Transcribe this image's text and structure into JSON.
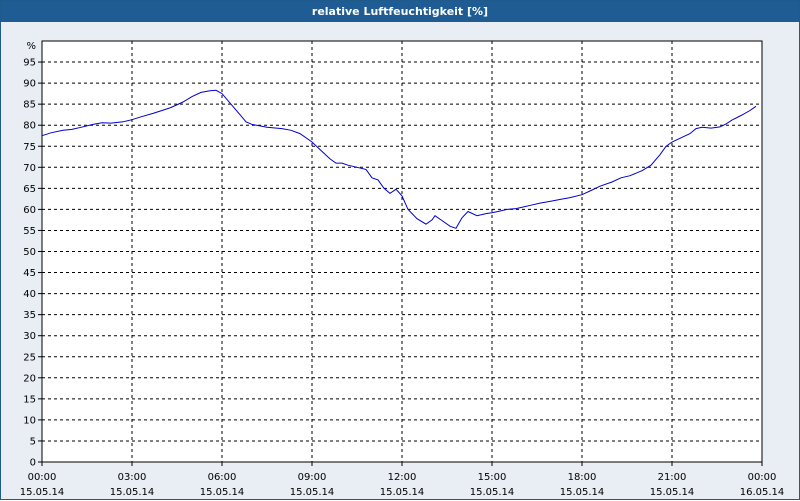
{
  "title": "relative Luftfeuchtigkeit [%]",
  "colors": {
    "titlebar": "#1f5c93",
    "background": "#e9eef4",
    "plot_bg": "#ffffff",
    "line": "#0000cc",
    "grid": "#000000"
  },
  "chart_data": {
    "type": "line",
    "title": "relative Luftfeuchtigkeit [%]",
    "ylabel": "%",
    "xlabel": "",
    "ylim": [
      0,
      100
    ],
    "xlim": [
      0,
      24
    ],
    "grid": true,
    "yticks": [
      "0",
      "5",
      "10",
      "15",
      "20",
      "25",
      "30",
      "35",
      "40",
      "45",
      "50",
      "55",
      "60",
      "65",
      "70",
      "75",
      "80",
      "85",
      "90",
      "95"
    ],
    "xticks": [
      {
        "time": "00:00",
        "date": "15.05.14"
      },
      {
        "time": "03:00",
        "date": "15.05.14"
      },
      {
        "time": "06:00",
        "date": "15.05.14"
      },
      {
        "time": "09:00",
        "date": "15.05.14"
      },
      {
        "time": "12:00",
        "date": "15.05.14"
      },
      {
        "time": "15:00",
        "date": "15.05.14"
      },
      {
        "time": "18:00",
        "date": "15.05.14"
      },
      {
        "time": "21:00",
        "date": "15.05.14"
      },
      {
        "time": "00:00",
        "date": "16.05.14"
      }
    ],
    "series": [
      {
        "x": [
          0,
          0.3,
          0.7,
          1,
          1.3,
          1.7,
          2,
          2.3,
          2.7,
          3,
          3.3,
          3.7,
          4,
          4.3,
          4.7,
          5,
          5.3,
          5.6,
          5.8,
          6,
          6.3,
          6.6,
          6.8,
          7,
          7.5,
          8,
          8.3,
          8.6,
          9,
          9.3,
          9.6,
          9.8,
          10,
          10.2,
          10.5,
          10.8,
          11,
          11.2,
          11.4,
          11.6,
          11.8,
          12,
          12.2,
          12.5,
          12.8,
          13,
          13.1,
          13.3,
          13.6,
          13.8,
          14,
          14.2,
          14.5,
          14.8,
          15,
          15.2,
          15.5,
          15.8,
          16,
          16.3,
          16.6,
          17,
          17.3,
          17.6,
          18,
          18.3,
          18.6,
          19,
          19.3,
          19.6,
          20,
          20.3,
          20.6,
          20.8,
          21,
          21.3,
          21.6,
          21.8,
          22,
          22.3,
          22.6,
          22.8,
          23,
          23.3,
          23.6,
          23.8
        ],
        "values": [
          77.5,
          78.2,
          78.8,
          79,
          79.5,
          80.2,
          80.6,
          80.5,
          80.8,
          81.3,
          82,
          82.8,
          83.5,
          84.2,
          85.5,
          86.8,
          87.8,
          88.2,
          88.3,
          87.5,
          85,
          82.5,
          80.8,
          80.2,
          79.5,
          79.2,
          78.8,
          78,
          76,
          74,
          72,
          71,
          71,
          70.5,
          70,
          69.5,
          67.5,
          67,
          65,
          63.8,
          64.8,
          63.2,
          60,
          57.8,
          56.5,
          57.5,
          58.5,
          57.5,
          56,
          55.5,
          58,
          59.5,
          58.5,
          59,
          59.2,
          59.5,
          60,
          60.2,
          60.5,
          61,
          61.5,
          62,
          62.4,
          62.8,
          63.5,
          64.5,
          65.5,
          66.5,
          67.5,
          68,
          69.2,
          70.5,
          73,
          75,
          76,
          77,
          78,
          79.2,
          79.5,
          79.3,
          79.6,
          80.3,
          81.2,
          82.3,
          83.5,
          84.5
        ]
      }
    ]
  }
}
